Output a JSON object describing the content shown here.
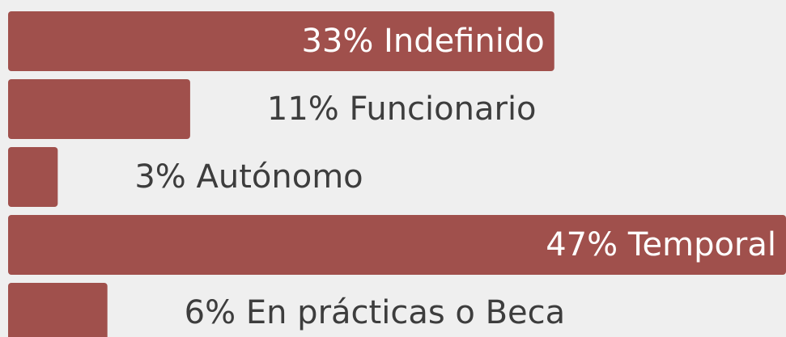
{
  "chart_data": {
    "type": "barh",
    "values": [
      33,
      11,
      3,
      47,
      6
    ],
    "value_labels": [
      "33% Indefinido",
      "11% Funcionario",
      "3% Autónomo",
      "47% Temporal",
      "6% En prácticas o Beca"
    ],
    "xlim": [
      0,
      47
    ],
    "color": "#a0504c"
  }
}
